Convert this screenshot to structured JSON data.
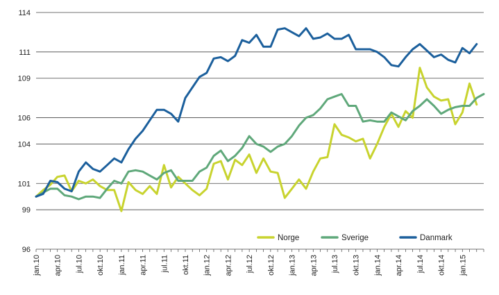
{
  "chart_data": {
    "type": "line",
    "title": "",
    "xlabel": "",
    "ylabel": "",
    "ylim": [
      96,
      114
    ],
    "yticks": [
      96,
      99,
      101,
      104,
      106,
      109,
      111,
      114
    ],
    "ytick_labels": [
      "96",
      "99",
      "101",
      "104",
      "106",
      "109",
      "111",
      "114"
    ],
    "grid": "horizontal",
    "legend_position": "bottom-right",
    "x": [
      "jan.10",
      "feb.10",
      "mar.10",
      "apr.10",
      "mai.10",
      "jun.10",
      "jul.10",
      "aug.10",
      "sep.10",
      "okt.10",
      "nov.10",
      "des.10",
      "jan.11",
      "feb.11",
      "mar.11",
      "apr.11",
      "mai.11",
      "jun.11",
      "jul.11",
      "aug.11",
      "sep.11",
      "okt.11",
      "nov.11",
      "des.11",
      "jan.12",
      "feb.12",
      "mar.12",
      "apr.12",
      "mai.12",
      "jun.12",
      "jul.12",
      "aug.12",
      "sep.12",
      "okt.12",
      "nov.12",
      "des.12",
      "jan.13",
      "feb.13",
      "mar.13",
      "apr.13",
      "mai.13",
      "jun.13",
      "jul.13",
      "aug.13",
      "sep.13",
      "okt.13",
      "nov.13",
      "des.13",
      "jan.14",
      "feb.14",
      "mar.14",
      "apr.14",
      "mai.14",
      "jun.14",
      "jul.14",
      "aug.14",
      "sep.14",
      "okt.14",
      "nov.14",
      "des.14",
      "jan.15",
      "feb.15",
      "mar.15",
      "apr.15"
    ],
    "x_tick_labels": [
      {
        "index": 0,
        "label": "jan.10"
      },
      {
        "index": 3,
        "label": "apr.10"
      },
      {
        "index": 6,
        "label": "jul.10"
      },
      {
        "index": 9,
        "label": "okt.10"
      },
      {
        "index": 12,
        "label": "jan.11"
      },
      {
        "index": 15,
        "label": "apr.11"
      },
      {
        "index": 18,
        "label": "jul.11"
      },
      {
        "index": 21,
        "label": "okt.11"
      },
      {
        "index": 24,
        "label": "jan.12"
      },
      {
        "index": 27,
        "label": "apr.12"
      },
      {
        "index": 30,
        "label": "jul.12"
      },
      {
        "index": 33,
        "label": "okt.12"
      },
      {
        "index": 36,
        "label": "jan.13"
      },
      {
        "index": 39,
        "label": "apr.13"
      },
      {
        "index": 42,
        "label": "jul.13"
      },
      {
        "index": 45,
        "label": "okt.13"
      },
      {
        "index": 48,
        "label": "jan.14"
      },
      {
        "index": 51,
        "label": "apr.14"
      },
      {
        "index": 54,
        "label": "jul.14"
      },
      {
        "index": 57,
        "label": "okt.14"
      },
      {
        "index": 60,
        "label": "jan.15"
      }
    ],
    "series": [
      {
        "name": "Norge",
        "color": "#c8d32e",
        "values": [
          100.0,
          100.5,
          100.9,
          101.5,
          101.6,
          100.4,
          101.2,
          101.0,
          101.3,
          100.8,
          100.5,
          100.5,
          98.9,
          101.1,
          100.5,
          100.2,
          100.8,
          100.2,
          102.4,
          100.7,
          101.5,
          101.0,
          100.5,
          100.1,
          100.6,
          102.5,
          102.7,
          101.3,
          102.8,
          102.4,
          103.2,
          101.8,
          102.9,
          101.9,
          101.8,
          99.9,
          100.6,
          101.3,
          100.6,
          101.9,
          102.9,
          103.0,
          105.5,
          104.7,
          104.5,
          104.2,
          104.4,
          102.9,
          104.0,
          105.3,
          106.3,
          105.3,
          106.5,
          106.0,
          109.8,
          108.3,
          107.6,
          107.3,
          107.4,
          105.5,
          106.4,
          108.6,
          107.0,
          null
        ]
      },
      {
        "name": "Sverige",
        "color": "#5fa87a",
        "values": [
          100.0,
          100.3,
          100.6,
          100.6,
          100.1,
          100.0,
          99.8,
          100.0,
          100.0,
          99.9,
          100.6,
          101.2,
          101.0,
          101.9,
          102.0,
          101.9,
          101.6,
          101.3,
          101.8,
          102.0,
          101.2,
          101.2,
          101.2,
          101.9,
          102.2,
          103.1,
          103.5,
          102.7,
          103.1,
          103.7,
          104.6,
          104.0,
          103.8,
          103.4,
          103.8,
          104.0,
          104.6,
          105.4,
          106.0,
          106.2,
          106.7,
          107.4,
          107.6,
          107.8,
          106.9,
          106.9,
          105.7,
          105.8,
          105.7,
          105.7,
          106.4,
          106.1,
          105.8,
          106.5,
          106.9,
          107.4,
          106.9,
          106.3,
          106.6,
          106.8,
          106.9,
          106.9,
          107.5,
          107.8
        ]
      },
      {
        "name": "Danmark",
        "color": "#1b5f9c",
        "values": [
          100.0,
          100.2,
          101.2,
          101.1,
          100.6,
          100.4,
          101.9,
          102.6,
          102.1,
          101.9,
          102.4,
          102.9,
          102.6,
          103.6,
          104.4,
          105.0,
          105.8,
          106.6,
          106.6,
          106.3,
          105.7,
          107.5,
          108.3,
          109.1,
          109.4,
          110.5,
          110.6,
          110.3,
          110.7,
          111.9,
          111.7,
          112.3,
          111.4,
          111.4,
          112.7,
          112.8,
          112.5,
          112.2,
          112.8,
          112.0,
          112.1,
          112.4,
          112.0,
          112.0,
          112.3,
          111.2,
          111.2,
          111.2,
          111.0,
          110.6,
          110.0,
          109.9,
          110.6,
          111.2,
          111.6,
          111.1,
          110.6,
          110.8,
          110.4,
          110.2,
          111.3,
          110.9,
          111.6,
          null
        ]
      }
    ]
  }
}
